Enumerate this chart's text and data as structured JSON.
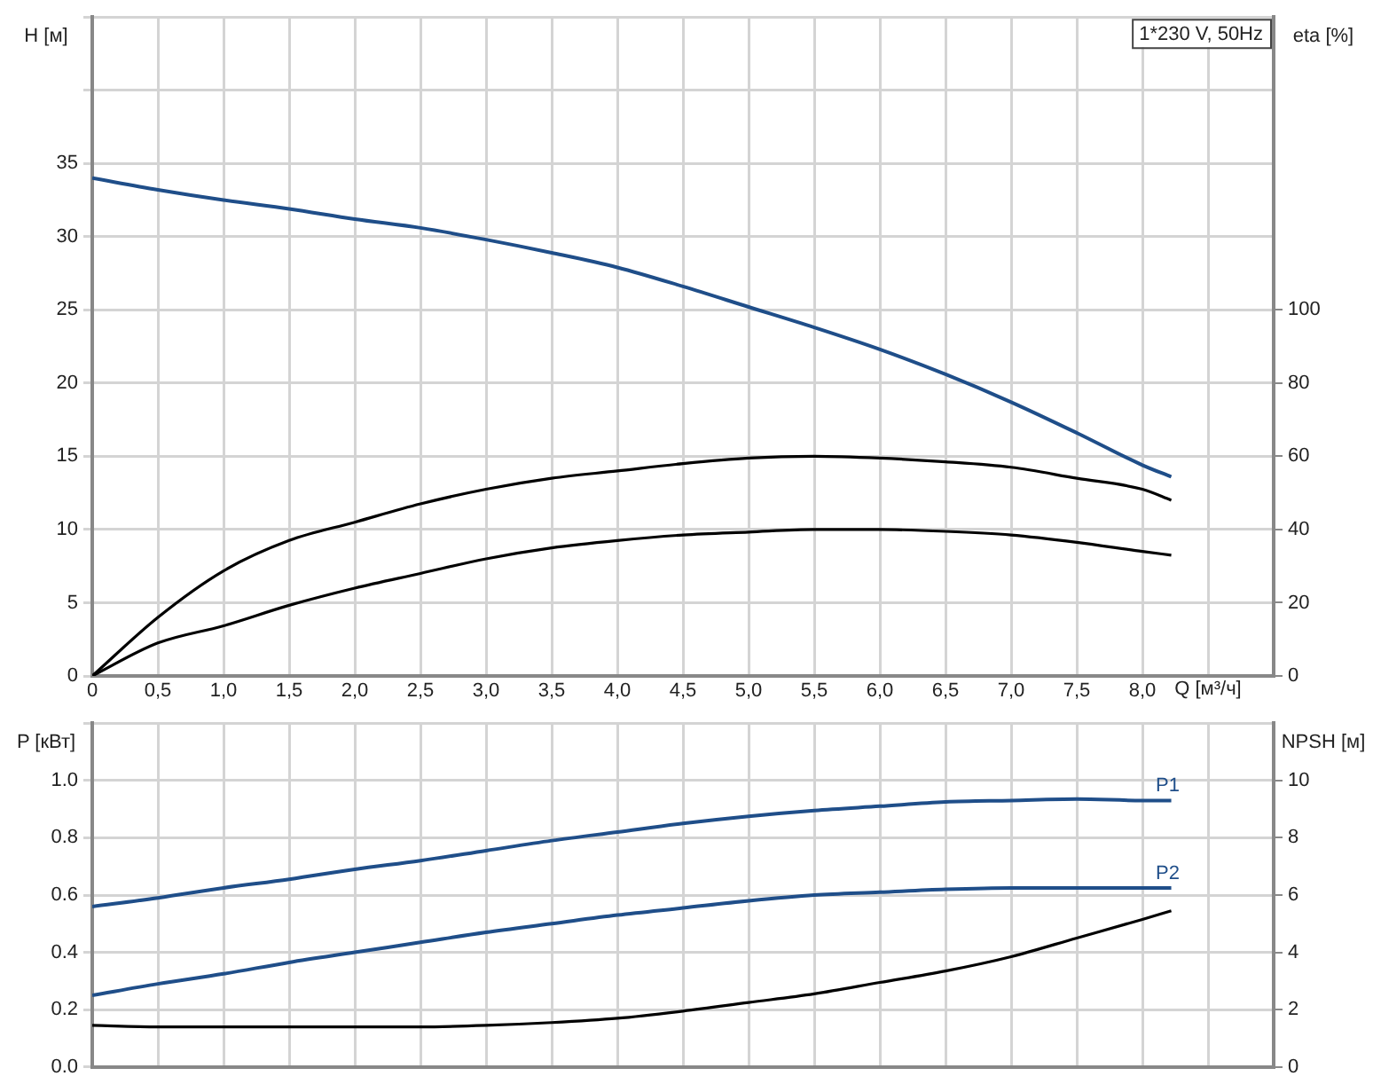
{
  "chart_data": [
    {
      "type": "line",
      "title": "1*230 V, 50Hz",
      "xlabel": "Q [м³/ч]",
      "ylabel": "H [м]",
      "y2label": "eta [%]",
      "xlim": [
        0,
        9
      ],
      "xticks": [
        0,
        {
          "value": 0.5,
          "label": "0,5"
        },
        {
          "value": 1,
          "label": "1,0"
        },
        {
          "value": 1.5,
          "label": "1,5"
        },
        {
          "value": 2,
          "label": "2,0"
        },
        {
          "value": 2.5,
          "label": "2,5"
        },
        {
          "value": 3,
          "label": "3,0"
        },
        {
          "value": 3.5,
          "label": "3,5"
        },
        {
          "value": 4,
          "label": "4,0"
        },
        {
          "value": 4.5,
          "label": "4,5"
        },
        {
          "value": 5,
          "label": "5,0"
        },
        {
          "value": 5.5,
          "label": "5,5"
        },
        {
          "value": 6,
          "label": "6,0"
        },
        {
          "value": 6.5,
          "label": "6,5"
        },
        {
          "value": 7,
          "label": "7,0"
        },
        {
          "value": 7.5,
          "label": "7,5"
        },
        {
          "value": 8,
          "label": "8,0"
        },
        {
          "value": 8.5,
          "label": null
        },
        {
          "value": 9,
          "label": null
        }
      ],
      "ylim": [
        0,
        45
      ],
      "yticks": [
        0,
        5,
        10,
        15,
        20,
        25,
        30,
        35,
        {
          "value": 40,
          "label": null
        },
        {
          "value": 45,
          "label": null
        }
      ],
      "y2lim": [
        0,
        180
      ],
      "y2ticks": [
        0,
        20,
        40,
        60,
        80,
        100
      ],
      "grid": true,
      "legend": false,
      "marker": "none",
      "line_style": "solid",
      "x": [
        0,
        0.5,
        1,
        1.5,
        2,
        2.5,
        3,
        3.5,
        4,
        4.5,
        5,
        5.5,
        6,
        6.5,
        7,
        7.5,
        8,
        8.22
      ],
      "series": [
        {
          "color": "#1f4e89",
          "values": [
            34,
            33.2,
            32.5,
            31.9,
            31.2,
            30.6,
            29.8,
            28.9,
            27.9,
            26.6,
            25.2,
            23.8,
            22.3,
            20.6,
            18.7,
            16.6,
            14.4,
            13.6
          ]
        },
        {
          "color": "#000000",
          "axis": "y2",
          "values": [
            0,
            16,
            28.7,
            37,
            42,
            47,
            51,
            54,
            56,
            58,
            59.5,
            60,
            59.5,
            58.5,
            57,
            54,
            51,
            48
          ]
        },
        {
          "color": "#000000",
          "axis": "y2",
          "values": [
            0,
            9,
            13.7,
            19.3,
            24,
            28,
            32,
            35,
            37,
            38.5,
            39.3,
            40,
            40,
            39.5,
            38.5,
            36.5,
            34,
            33
          ]
        }
      ]
    },
    {
      "type": "line",
      "ylabel": "P [кВт]",
      "y2label": "NPSH [м]",
      "tick_labels": "y",
      "xlim": [
        0,
        9
      ],
      "xticks": [
        0,
        0.5,
        1,
        1.5,
        2,
        2.5,
        3,
        3.5,
        4,
        4.5,
        5,
        5.5,
        6,
        6.5,
        7,
        7.5,
        8,
        8.5,
        9
      ],
      "ylim": [
        0,
        1.2
      ],
      "yticks": [
        {
          "value": 0,
          "label": "0.0"
        },
        {
          "value": 0.2,
          "label": "0.2"
        },
        {
          "value": 0.4,
          "label": "0.4"
        },
        {
          "value": 0.6,
          "label": "0.6"
        },
        {
          "value": 0.8,
          "label": "0.8"
        },
        {
          "value": 1,
          "label": "1.0"
        },
        {
          "value": 1.2,
          "label": null
        }
      ],
      "y2lim": [
        0,
        12
      ],
      "y2ticks": [
        0,
        2,
        4,
        6,
        8,
        10
      ],
      "grid": true,
      "legend": false,
      "marker": "none",
      "line_style": "solid",
      "x": [
        0,
        0.5,
        1,
        1.5,
        2,
        2.5,
        3,
        3.5,
        4,
        4.5,
        5,
        5.5,
        6,
        6.5,
        7,
        7.5,
        8,
        8.22
      ],
      "series": [
        {
          "name": "P1",
          "color": "#1f4e89",
          "values": [
            0.56,
            0.59,
            0.625,
            0.655,
            0.69,
            0.72,
            0.755,
            0.79,
            0.82,
            0.85,
            0.875,
            0.895,
            0.91,
            0.925,
            0.93,
            0.935,
            0.93,
            0.93
          ]
        },
        {
          "name": "P2",
          "color": "#1f4e89",
          "values": [
            0.25,
            0.29,
            0.325,
            0.365,
            0.4,
            0.435,
            0.47,
            0.5,
            0.53,
            0.555,
            0.58,
            0.6,
            0.61,
            0.62,
            0.625,
            0.625,
            0.625,
            0.625
          ]
        },
        {
          "color": "#000000",
          "axis": "y2",
          "values": [
            1.45,
            1.4,
            1.4,
            1.4,
            1.4,
            1.4,
            1.45,
            1.55,
            1.7,
            1.95,
            2.25,
            2.55,
            2.95,
            3.35,
            3.85,
            4.5,
            5.15,
            5.45
          ]
        }
      ]
    }
  ]
}
